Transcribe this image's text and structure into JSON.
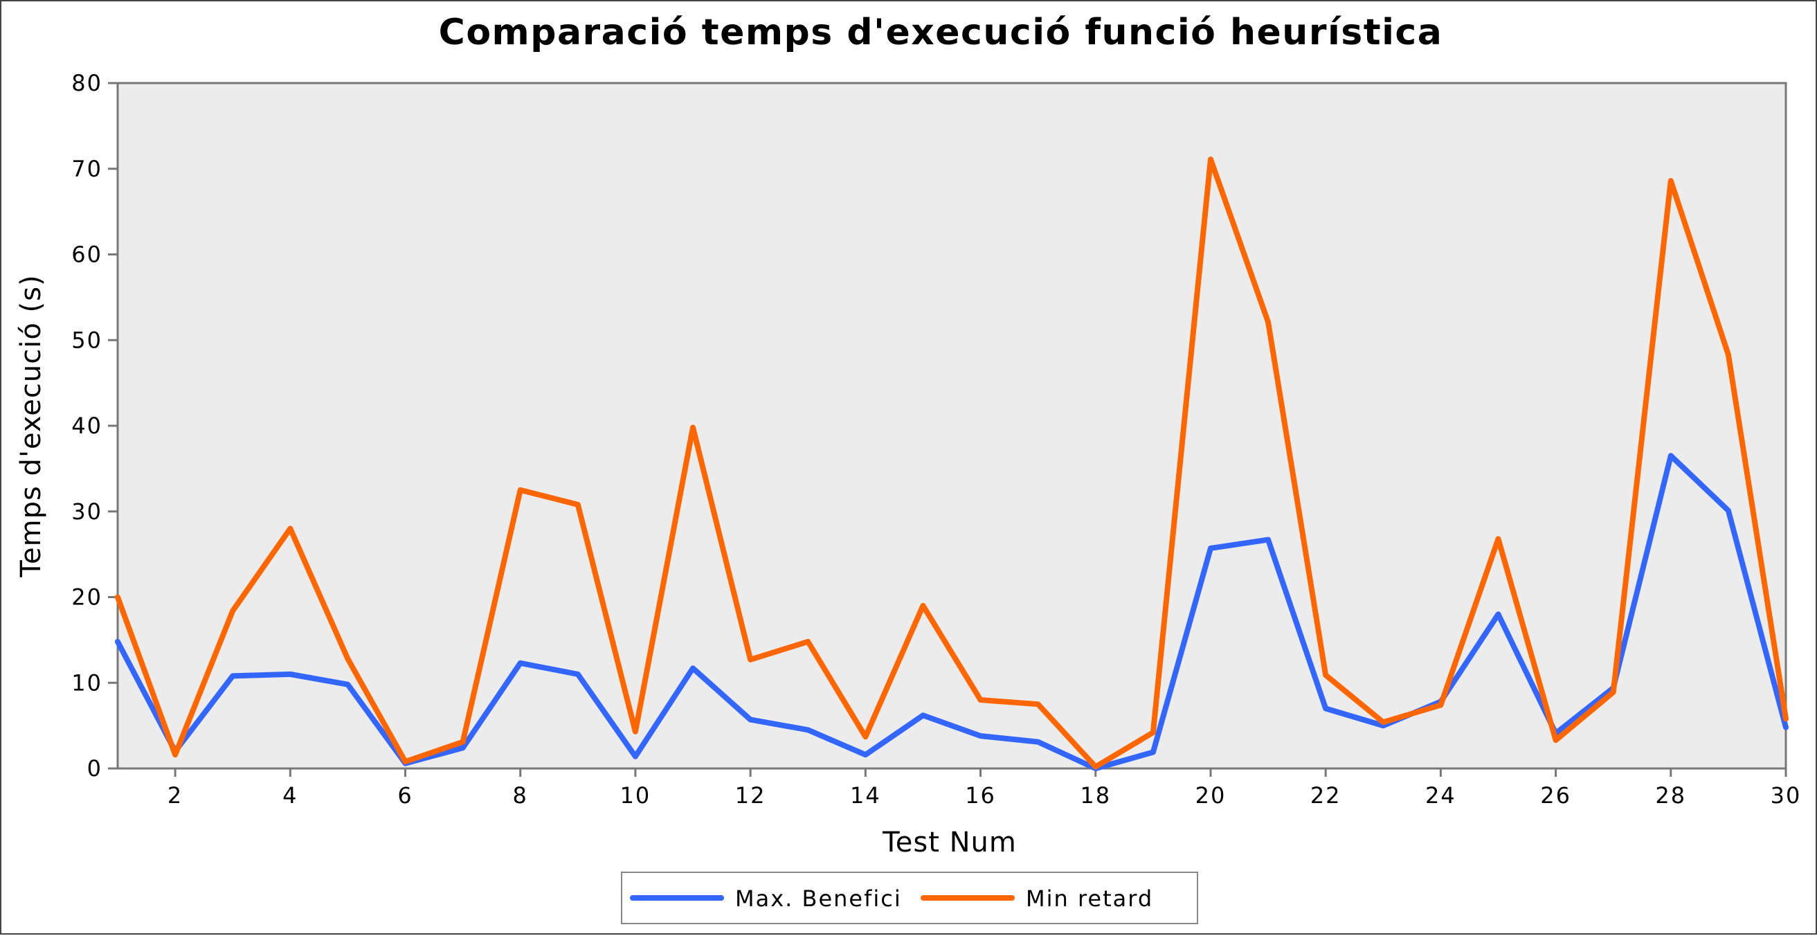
{
  "chart_data": {
    "type": "line",
    "title": "Comparació temps d'execució funció heurística",
    "xlabel": "Test Num",
    "ylabel": "Temps d'execució (s)",
    "xlim": [
      1,
      30
    ],
    "ylim": [
      0,
      80
    ],
    "x_ticks": [
      2,
      4,
      6,
      8,
      10,
      12,
      14,
      16,
      18,
      20,
      22,
      24,
      26,
      28,
      30
    ],
    "y_ticks": [
      0,
      10,
      20,
      30,
      40,
      50,
      60,
      70,
      80
    ],
    "grid": false,
    "legend_position": "bottom-center",
    "x": [
      1,
      2,
      3,
      4,
      5,
      6,
      7,
      8,
      9,
      10,
      11,
      12,
      13,
      14,
      15,
      16,
      17,
      18,
      19,
      20,
      21,
      22,
      23,
      24,
      25,
      26,
      27,
      28,
      29,
      30
    ],
    "series": [
      {
        "name": "Max. Benefici",
        "color": "#3366ff",
        "values": [
          14.8,
          2.0,
          10.8,
          11.0,
          9.8,
          0.6,
          2.4,
          12.3,
          11.0,
          1.4,
          11.7,
          5.7,
          4.5,
          1.6,
          6.2,
          3.8,
          3.1,
          0.0,
          1.9,
          25.7,
          26.7,
          7.0,
          5.0,
          7.8,
          18.0,
          4.1,
          9.4,
          36.5,
          30.1,
          4.8
        ]
      },
      {
        "name": "Min retard",
        "color": "#ff6600",
        "values": [
          20.0,
          1.6,
          18.4,
          28.0,
          12.8,
          0.8,
          3.1,
          32.5,
          30.8,
          4.3,
          39.8,
          12.7,
          14.8,
          3.7,
          19.0,
          8.0,
          7.5,
          0.2,
          4.2,
          71.1,
          52.1,
          10.9,
          5.4,
          7.4,
          26.8,
          3.3,
          8.9,
          68.6,
          48.3,
          5.8
        ]
      }
    ]
  }
}
